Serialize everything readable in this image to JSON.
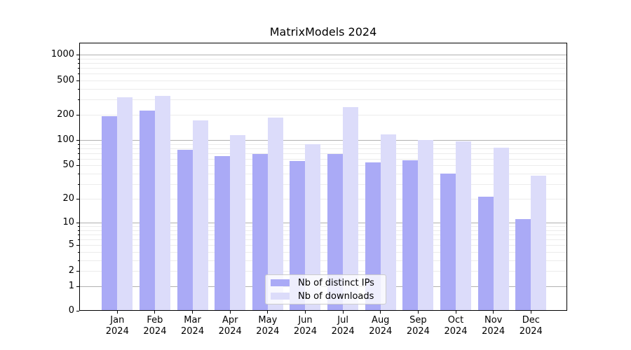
{
  "chart_data": {
    "type": "bar",
    "title": "MatrixModels 2024",
    "categories": [
      "Jan 2024",
      "Feb 2024",
      "Mar 2024",
      "Apr 2024",
      "May 2024",
      "Jun 2024",
      "Jul 2024",
      "Aug 2024",
      "Sep 2024",
      "Oct 2024",
      "Nov 2024",
      "Dec 2024"
    ],
    "x_tick_month_labels": [
      "Jan",
      "Feb",
      "Mar",
      "Apr",
      "May",
      "Jun",
      "Jul",
      "Aug",
      "Sep",
      "Oct",
      "Nov",
      "Dec"
    ],
    "x_tick_year_label": "2024",
    "series": [
      {
        "name": "Nb of distinct IPs",
        "key": "distinct-ips",
        "color": "#aaaaf6",
        "values": [
          190,
          224,
          77,
          65,
          69,
          57,
          69,
          55,
          58,
          40,
          21,
          11
        ]
      },
      {
        "name": "Nb of downloads",
        "key": "downloads",
        "color": "#dcdcfa",
        "values": [
          320,
          332,
          172,
          115,
          185,
          89,
          243,
          116,
          100,
          97,
          81,
          38
        ]
      }
    ],
    "y_axis": {
      "scale": "log1p",
      "ylim": [
        0,
        1385
      ],
      "tick_values": [
        0,
        1,
        2,
        5,
        10,
        20,
        50,
        100,
        200,
        500,
        1000
      ],
      "tick_labels": [
        "0",
        "1",
        "2",
        "5",
        "10",
        "20",
        "50",
        "100",
        "200",
        "500",
        "1000"
      ],
      "major_gridline_values": [
        1,
        10,
        100,
        1000
      ],
      "minor_gridline_values": [
        2,
        3,
        4,
        5,
        6,
        7,
        8,
        9,
        20,
        30,
        40,
        50,
        60,
        70,
        80,
        90,
        200,
        300,
        400,
        500,
        600,
        700,
        800,
        900
      ]
    },
    "legend": {
      "entries": [
        "Nb of distinct IPs",
        "Nb of downloads"
      ],
      "position": "lower center"
    },
    "grid": true
  },
  "colors": {
    "background": "#ffffff",
    "axis": "#000000",
    "major_grid": "#b0b0b0",
    "minor_grid": "#ececec",
    "ips_bar": "#aaaaf6",
    "downloads_bar": "#dcdcfa"
  }
}
